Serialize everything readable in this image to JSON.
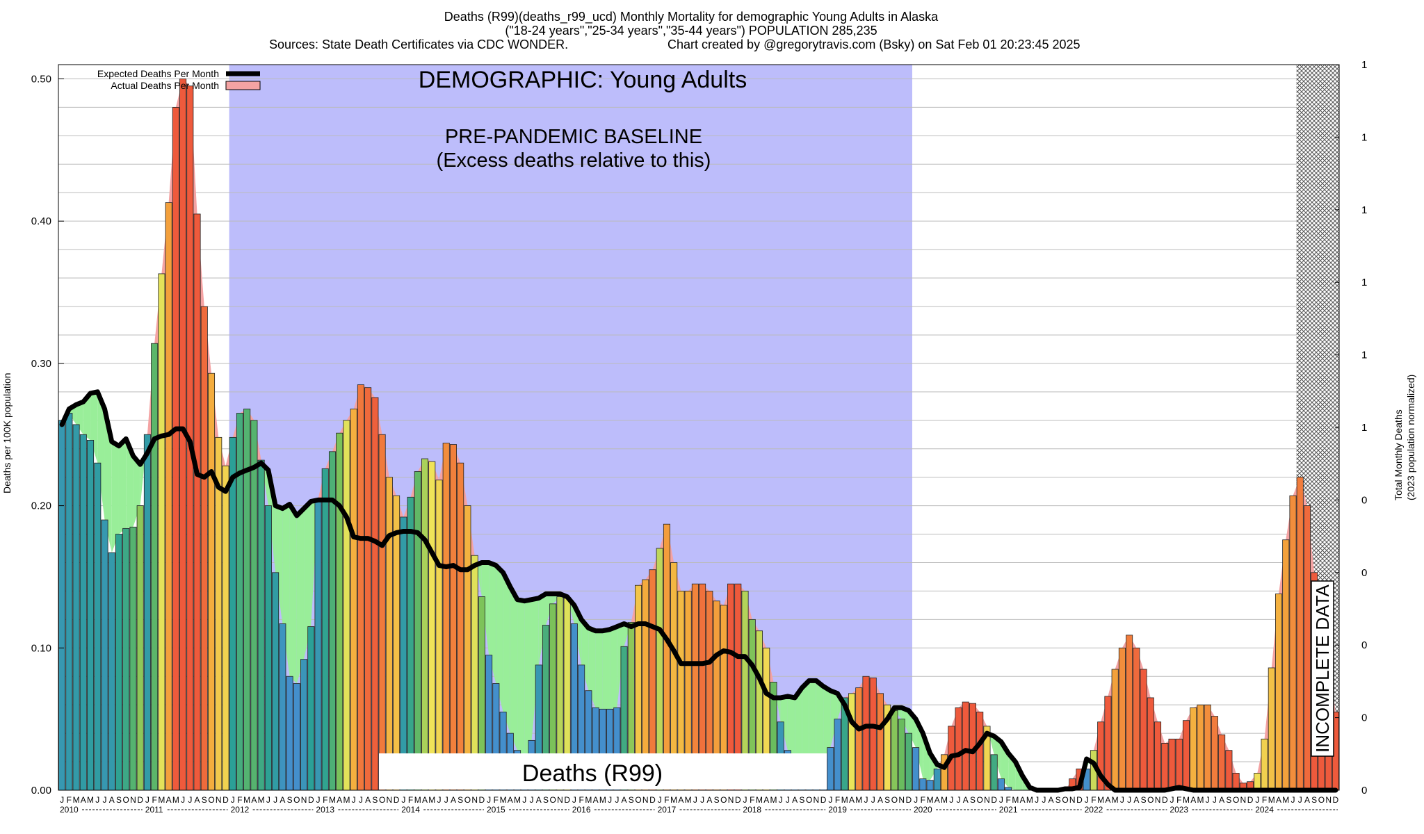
{
  "header": {
    "line1": "Deaths (R99)(deaths_r99_ucd) Monthly Mortality for demographic Young Adults in Alaska",
    "line2": "(\"18-24 years\",\"25-34 years\",\"35-44 years\") POPULATION 285,235",
    "line3a": "Sources: State Death Certificates via CDC WONDER.",
    "line3b": "Chart created by @gregorytravis.com (Bsky) on Sat Feb 01 20:23:45 2025"
  },
  "legend": {
    "expected": "Expected Deaths Per Month",
    "actual": "Actual Deaths Per Month"
  },
  "annotations": {
    "demographic": "DEMOGRAPHIC: Young Adults",
    "baseline_line1": "PRE-PANDEMIC BASELINE",
    "baseline_line2": "(Excess deaths relative to this)",
    "cause_box": "Deaths (R99)",
    "incomplete": "INCOMPLETE DATA"
  },
  "colors": {
    "baseline_region": "#bdbdfb",
    "expected_line": "#000000",
    "actual_fill": "#f4a3a3",
    "excess_under_fill": "#99ee99",
    "hatch": "#555555"
  },
  "chart_data": {
    "type": "bar",
    "ylabel": "Deaths per 100K population",
    "y2label_line1": "Total Monthly Deaths",
    "y2label_line2": "(2023 population normalized)",
    "ylim": [
      0,
      0.51
    ],
    "y_ticks": [
      "0.00",
      "0.10",
      "0.20",
      "0.30",
      "0.40",
      "0.50"
    ],
    "y2_tick_labels": [
      "0",
      "0",
      "0",
      "0",
      "0",
      "1",
      "1",
      "1",
      "1",
      "1",
      "1"
    ],
    "month_letters": [
      "J",
      "F",
      "M",
      "A",
      "M",
      "J",
      "J",
      "A",
      "S",
      "O",
      "N",
      "D"
    ],
    "years": [
      "2010",
      "2011",
      "2012",
      "2013",
      "2014",
      "2015",
      "2016",
      "2017",
      "2018",
      "2019",
      "2020",
      "2021",
      "2022",
      "2023",
      "2024"
    ],
    "baseline_period": [
      "2012-01",
      "2019-12"
    ],
    "incomplete_period": [
      "2024-07",
      "2024-12"
    ],
    "actual": [
      0.26,
      0.265,
      0.257,
      0.25,
      0.246,
      0.23,
      0.19,
      0.167,
      0.18,
      0.184,
      0.185,
      0.2,
      0.25,
      0.314,
      0.363,
      0.413,
      0.48,
      0.5,
      0.495,
      0.405,
      0.34,
      0.293,
      0.248,
      0.228,
      0.248,
      0.265,
      0.268,
      0.26,
      0.232,
      0.2,
      0.153,
      0.117,
      0.08,
      0.075,
      0.092,
      0.115,
      0.205,
      0.226,
      0.238,
      0.251,
      0.26,
      0.268,
      0.285,
      0.283,
      0.276,
      0.25,
      0.22,
      0.207,
      0.192,
      0.206,
      0.224,
      0.233,
      0.231,
      0.218,
      0.244,
      0.243,
      0.23,
      0.2,
      0.165,
      0.136,
      0.095,
      0.075,
      0.055,
      0.04,
      0.028,
      0.012,
      0.035,
      0.088,
      0.116,
      0.131,
      0.136,
      0.135,
      0.117,
      0.088,
      0.07,
      0.058,
      0.057,
      0.057,
      0.058,
      0.101,
      0.118,
      0.144,
      0.148,
      0.155,
      0.17,
      0.187,
      0.16,
      0.14,
      0.14,
      0.145,
      0.145,
      0.14,
      0.133,
      0.13,
      0.145,
      0.145,
      0.14,
      0.12,
      0.112,
      0.1,
      0.076,
      0.048,
      0.028,
      0.01,
      0.003,
      0.003,
      0.01,
      0.022,
      0.03,
      0.05,
      0.065,
      0.068,
      0.072,
      0.08,
      0.079,
      0.068,
      0.06,
      0.056,
      0.05,
      0.04,
      0.03,
      0.008,
      0.007,
      0.015,
      0.025,
      0.045,
      0.058,
      0.062,
      0.061,
      0.055,
      0.045,
      0.025,
      0.008,
      0.002,
      0,
      0,
      0,
      0,
      0,
      0,
      0,
      0,
      0.008,
      0.015,
      0.015,
      0.028,
      0.048,
      0.066,
      0.085,
      0.1,
      0.109,
      0.1,
      0.085,
      0.065,
      0.048,
      0.033,
      0.036,
      0.036,
      0.049,
      0.058,
      0.06,
      0.06,
      0.052,
      0.039,
      0.028,
      0.012,
      0.005,
      0.006,
      0.012,
      0.036,
      0.086,
      0.138,
      0.176,
      0.207,
      0.22,
      0.2,
      0.153,
      0.128,
      0.09,
      0.055
    ],
    "expected": [
      0.257,
      0.268,
      0.271,
      0.273,
      0.279,
      0.28,
      0.268,
      0.245,
      0.242,
      0.247,
      0.235,
      0.229,
      0.237,
      0.247,
      0.249,
      0.25,
      0.254,
      0.254,
      0.245,
      0.222,
      0.22,
      0.224,
      0.213,
      0.21,
      0.22,
      0.223,
      0.225,
      0.227,
      0.23,
      0.225,
      0.2,
      0.198,
      0.201,
      0.193,
      0.198,
      0.203,
      0.204,
      0.204,
      0.204,
      0.2,
      0.192,
      0.178,
      0.177,
      0.177,
      0.175,
      0.172,
      0.179,
      0.181,
      0.182,
      0.182,
      0.181,
      0.176,
      0.167,
      0.158,
      0.157,
      0.158,
      0.155,
      0.155,
      0.158,
      0.16,
      0.16,
      0.158,
      0.153,
      0.143,
      0.134,
      0.133,
      0.134,
      0.135,
      0.138,
      0.138,
      0.138,
      0.136,
      0.13,
      0.12,
      0.114,
      0.112,
      0.112,
      0.113,
      0.115,
      0.117,
      0.115,
      0.117,
      0.117,
      0.115,
      0.113,
      0.106,
      0.098,
      0.089,
      0.089,
      0.089,
      0.089,
      0.09,
      0.095,
      0.098,
      0.097,
      0.094,
      0.094,
      0.088,
      0.079,
      0.068,
      0.065,
      0.065,
      0.066,
      0.065,
      0.072,
      0.077,
      0.077,
      0.073,
      0.07,
      0.068,
      0.06,
      0.048,
      0.043,
      0.045,
      0.045,
      0.044,
      0.05,
      0.058,
      0.058,
      0.056,
      0.05,
      0.04,
      0.026,
      0.018,
      0.016,
      0.024,
      0.025,
      0.028,
      0.027,
      0.033,
      0.04,
      0.038,
      0.034,
      0.026,
      0.02,
      0.01,
      0.002,
      0,
      0,
      0,
      0,
      0.001,
      0.001,
      0.002,
      0.022,
      0.019,
      0.01,
      0.004,
      0,
      0,
      0,
      0,
      0,
      0,
      0,
      0,
      0.001,
      0.002,
      0.001,
      0,
      0,
      0,
      0,
      0,
      0,
      0,
      0,
      0,
      0,
      0,
      0,
      0,
      0,
      0,
      0,
      0,
      0,
      0,
      0,
      0
    ]
  }
}
